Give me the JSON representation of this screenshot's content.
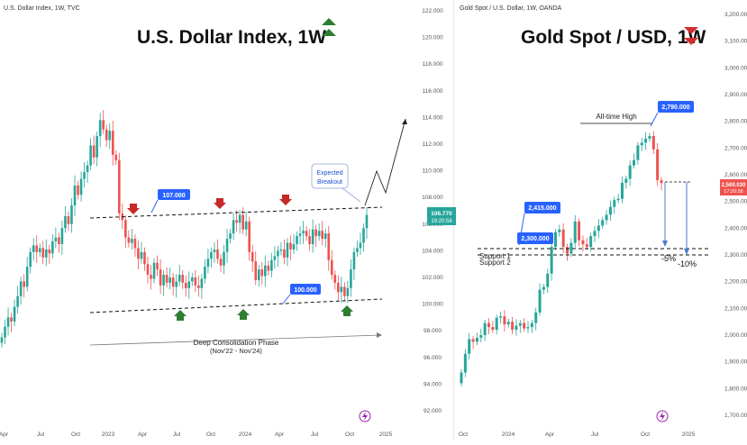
{
  "left": {
    "header": "U.S. Dollar Index, 1W, TVC",
    "title": "U.S. Dollar Index, 1W",
    "price_tag": "106.770",
    "price_tag_time": "19:20:58",
    "labels": {
      "resistance": "107.000",
      "support": "100.000",
      "expected_1": "Expected",
      "expected_2": "Breakout",
      "phase_1": "Deep Consolidation Phase",
      "phase_2": "(Nov'22 - Nov'24)"
    },
    "colors": {
      "up": "#26a69a",
      "down": "#ef5350",
      "arrow_up": "#2e7d32",
      "arrow_down": "#c62828",
      "label_bg": "#2962ff"
    }
  },
  "right": {
    "header": "Gold Spot / U.S. Dollar, 1W, OANDA",
    "title": "Gold Spot / USD, 1W",
    "price_tag": "2,569.030",
    "price_tag_time": "17:20:58",
    "labels": {
      "ath": "All-time High",
      "ath_value": "2,790.000",
      "s1_value": "2,415.000",
      "s2_value": "2,300.000",
      "support1": "Support 1",
      "support2": "Support 2",
      "pct1": "-5%",
      "pct2": "-10%"
    }
  },
  "chart_data": [
    {
      "type": "candlestick",
      "title": "U.S. Dollar Index, 1W",
      "ylim": [
        92,
        122
      ],
      "y_ticks": [
        "122.000",
        "120.000",
        "118.000",
        "116.000",
        "114.000",
        "112.000",
        "110.000",
        "108.000",
        "106.000",
        "104.000",
        "102.000",
        "100.000",
        "98.000",
        "96.000",
        "94.000",
        "92.000"
      ],
      "x_ticks": [
        "Apr",
        "Jul",
        "Oct",
        "2023",
        "Apr",
        "Jul",
        "Oct",
        "2024",
        "Apr",
        "Jul",
        "Oct",
        "2025"
      ],
      "levels": {
        "resistance": 107.0,
        "support": 100.0
      },
      "close_prices": [
        97.5,
        98.3,
        99.0,
        98.7,
        99.8,
        100.6,
        101.7,
        101.3,
        102.8,
        103.9,
        104.4,
        103.9,
        104.2,
        103.5,
        104.1,
        103.8,
        104.7,
        105.0,
        104.5,
        105.7,
        106.6,
        106.0,
        107.4,
        108.9,
        108.2,
        109.4,
        109.9,
        110.4,
        111.9,
        111.0,
        112.6,
        113.8,
        113.1,
        112.3,
        113.0,
        111.2,
        110.8,
        106.8,
        106.3,
        105.0,
        104.6,
        104.9,
        104.2,
        103.4,
        103.9,
        103.0,
        102.2,
        101.9,
        103.1,
        102.6,
        101.4,
        102.2,
        101.6,
        102.0,
        101.3,
        101.7,
        102.2,
        101.6,
        101.2,
        101.7,
        102.0,
        101.4,
        101.2,
        101.9,
        102.8,
        103.4,
        103.9,
        104.1,
        103.4,
        102.9,
        103.9,
        104.9,
        105.3,
        106.3,
        106.1,
        106.7,
        105.6,
        106.2,
        103.9,
        103.2,
        101.8,
        102.6,
        102.1,
        102.9,
        102.5,
        103.3,
        103.6,
        104.0,
        104.1,
        103.5,
        104.6,
        104.1,
        104.5,
        105.1,
        105.3,
        105.5,
        105.1,
        104.5,
        105.6,
        105.1,
        105.5,
        104.9,
        105.3,
        103.3,
        102.2,
        101.6,
        100.9,
        101.3,
        100.6,
        101.2,
        102.6,
        103.9,
        104.2,
        104.6,
        105.7,
        106.7
      ],
      "annotations": [
        "107.000",
        "100.000",
        "Expected Breakout",
        "Deep Consolidation Phase (Nov'22 - Nov'24)"
      ]
    },
    {
      "type": "candlestick",
      "title": "Gold Spot / USD, 1W",
      "ylim": [
        1700,
        3200
      ],
      "y_ticks": [
        "3,200.000",
        "3,100.000",
        "3,000.000",
        "2,900.000",
        "2,800.000",
        "2,700.000",
        "2,600.000",
        "2,500.000",
        "2,400.000",
        "2,300.000",
        "2,200.000",
        "2,100.000",
        "2,000.000",
        "1,900.000",
        "1,800.000",
        "1,700.000"
      ],
      "x_ticks": [
        "Oct",
        "2024",
        "Apr",
        "Jul",
        "Oct",
        "2025"
      ],
      "levels": {
        "support1": 2415,
        "support2": 2300,
        "all_time_high": 2790
      },
      "close_prices": [
        1860,
        1930,
        1985,
        1975,
        1990,
        2000,
        2045,
        2030,
        2020,
        2065,
        2070,
        2040,
        2050,
        2020,
        2035,
        2045,
        2025,
        2030,
        2045,
        2085,
        2170,
        2180,
        2230,
        2330,
        2385,
        2395,
        2330,
        2305,
        2345,
        2425,
        2355,
        2340,
        2330,
        2370,
        2390,
        2410,
        2430,
        2450,
        2480,
        2505,
        2510,
        2570,
        2585,
        2635,
        2655,
        2710,
        2720,
        2735,
        2745,
        2695,
        2580,
        2569
      ],
      "annotations": [
        "All-time High 2,790.000",
        "2,415.000 Support 1",
        "2,300.000 Support 2",
        "-5%",
        "-10%"
      ]
    }
  ]
}
